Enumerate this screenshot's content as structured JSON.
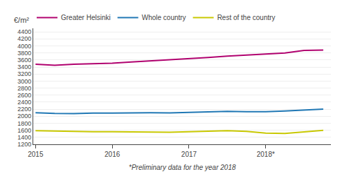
{
  "chart_data": {
    "type": "line",
    "x": [
      2015.0,
      2015.25,
      2015.5,
      2015.75,
      2016.0,
      2016.25,
      2016.5,
      2016.75,
      2017.0,
      2017.25,
      2017.5,
      2017.75,
      2018.0,
      2018.25,
      2018.5,
      2018.75
    ],
    "series": [
      {
        "name": "Greater Helsinki",
        "color": "#b0006e",
        "values": [
          3480,
          3450,
          3480,
          3490,
          3510,
          3540,
          3570,
          3600,
          3640,
          3670,
          3710,
          3740,
          3760,
          3800,
          3870,
          3880
        ]
      },
      {
        "name": "Whole country",
        "color": "#1f77b4",
        "values": [
          2100,
          2080,
          2075,
          2090,
          2090,
          2100,
          2100,
          2095,
          2110,
          2130,
          2140,
          2130,
          2130,
          2150,
          2180,
          2200
        ]
      },
      {
        "name": "Rest of the country",
        "color": "#c8c800",
        "values": [
          1590,
          1580,
          1560,
          1560,
          1560,
          1555,
          1550,
          1545,
          1560,
          1580,
          1590,
          1570,
          1520,
          1510,
          1550,
          1600
        ]
      }
    ],
    "ylabel": "€/m²",
    "annotations": [
      "*Preliminary data for the year 2018"
    ],
    "xlim": [
      2014.97,
      2018.85
    ],
    "xticks": [
      2015,
      2016,
      2017,
      {
        "value": 2018,
        "label": "2018*"
      }
    ],
    "ylim": [
      1200,
      4500
    ],
    "yticks": [
      1200,
      1400,
      1600,
      1800,
      2000,
      2200,
      2400,
      2600,
      2800,
      3000,
      3200,
      3400,
      3600,
      3800,
      4000,
      4200,
      4400
    ],
    "grid": "y",
    "legend": "upper left"
  }
}
